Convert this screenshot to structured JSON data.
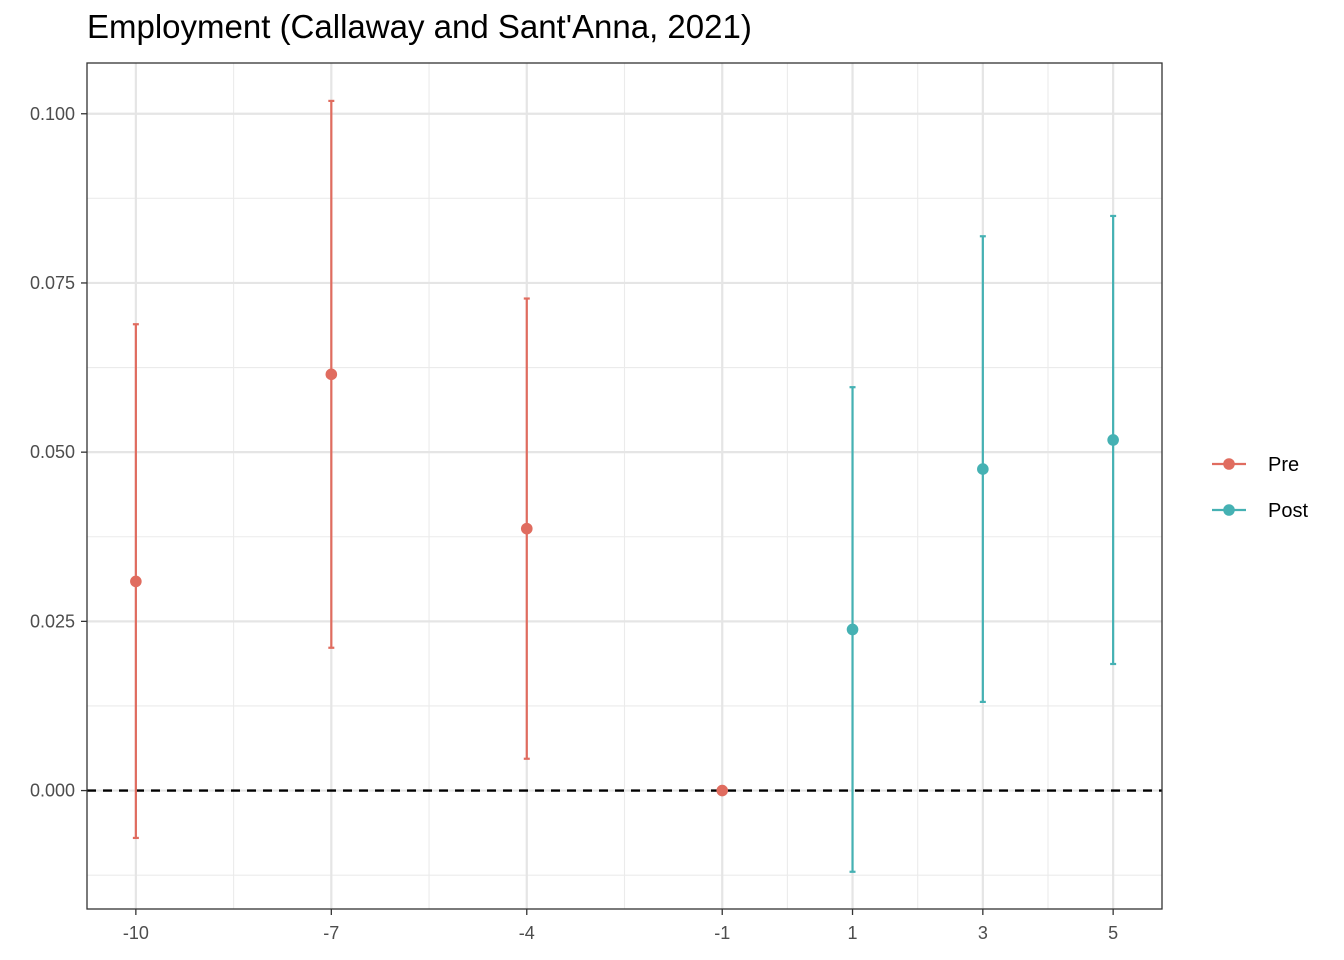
{
  "chart_data": {
    "type": "scatter",
    "title": "Employment (Callaway and Sant'Anna, 2021)",
    "xlabel": "",
    "ylabel": "",
    "x_ticks": [
      -10,
      -7,
      -4,
      -1,
      1,
      3,
      5
    ],
    "y_ticks": [
      0.0,
      0.025,
      0.05,
      0.075,
      0.1
    ],
    "y_tick_labels": [
      "0.000",
      "0.025",
      "0.050",
      "0.075",
      "0.100"
    ],
    "xlim": [
      -10.75,
      5.75
    ],
    "ylim": [
      -0.0175,
      0.1075
    ],
    "reference_line": {
      "y": 0,
      "style": "dashed",
      "color": "#000000"
    },
    "grid": true,
    "legend_position": "right",
    "series": [
      {
        "name": "Pre",
        "color": "#E06C5F",
        "points": [
          {
            "x": -10,
            "y": 0.0309,
            "lower": -0.007,
            "upper": 0.0689
          },
          {
            "x": -7,
            "y": 0.0615,
            "lower": 0.0211,
            "upper": 0.1019
          },
          {
            "x": -4,
            "y": 0.0387,
            "lower": 0.0047,
            "upper": 0.0727
          },
          {
            "x": -1,
            "y": 0.0,
            "lower": null,
            "upper": null
          }
        ]
      },
      {
        "name": "Post",
        "color": "#45B1B3",
        "points": [
          {
            "x": 1,
            "y": 0.0238,
            "lower": -0.012,
            "upper": 0.0596
          },
          {
            "x": 3,
            "y": 0.0475,
            "lower": 0.0131,
            "upper": 0.0819
          },
          {
            "x": 5,
            "y": 0.0518,
            "lower": 0.0187,
            "upper": 0.0849
          }
        ]
      }
    ]
  }
}
